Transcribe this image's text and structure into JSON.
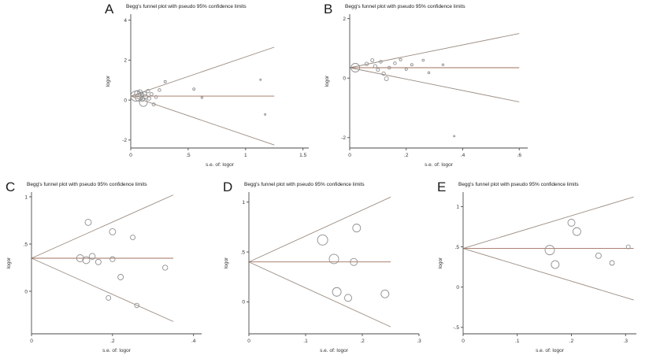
{
  "figure": {
    "background": "#ffffff",
    "axis_color": "#4a4a4a",
    "funnel_line_color": "#9a8c82",
    "center_line_color": "#a0715e",
    "point_color": "#8f8f8f",
    "text_color": "#1a1a1a"
  },
  "chart_data": [
    {
      "panel": "A",
      "type": "scatter",
      "title": "Begg's funnel plot with pseudo 95% confidence limits",
      "xlabel": "s.e. of: logor",
      "ylabel": "logor",
      "xlim": [
        0,
        1.55
      ],
      "ylim": [
        -2.4,
        4.3
      ],
      "xticks": [
        0,
        0.5,
        1,
        1.5
      ],
      "xtick_labels": [
        "0",
        ".5",
        "1",
        "1.5"
      ],
      "yticks": [
        -2,
        0,
        2,
        4
      ],
      "ytick_labels": [
        "-2",
        "0",
        "2",
        "4"
      ],
      "grid": false,
      "legend": null,
      "center_line_y": 0.2,
      "funnel": {
        "apex_x": 0,
        "end_x": 1.25,
        "upper_end_y": 2.65,
        "lower_end_y": -2.25
      },
      "points": [
        {
          "x": 0.045,
          "y": 0.2,
          "size": 6.5
        },
        {
          "x": 0.06,
          "y": 0.32,
          "size": 4
        },
        {
          "x": 0.07,
          "y": 0.12,
          "size": 4.5
        },
        {
          "x": 0.08,
          "y": 0.4,
          "size": 3
        },
        {
          "x": 0.09,
          "y": 0.25,
          "size": 3.5
        },
        {
          "x": 0.1,
          "y": 0.05,
          "size": 3
        },
        {
          "x": 0.11,
          "y": -0.12,
          "size": 5
        },
        {
          "x": 0.12,
          "y": 0.3,
          "size": 2.8
        },
        {
          "x": 0.13,
          "y": 0.18,
          "size": 2.5
        },
        {
          "x": 0.15,
          "y": 0.45,
          "size": 2.2
        },
        {
          "x": 0.16,
          "y": 0.08,
          "size": 2.2
        },
        {
          "x": 0.18,
          "y": 0.3,
          "size": 2
        },
        {
          "x": 0.2,
          "y": -0.22,
          "size": 2
        },
        {
          "x": 0.22,
          "y": 0.15,
          "size": 1.8
        },
        {
          "x": 0.25,
          "y": 0.5,
          "size": 1.8
        },
        {
          "x": 0.3,
          "y": 0.92,
          "size": 1.5
        },
        {
          "x": 0.55,
          "y": 0.55,
          "size": 1.5
        },
        {
          "x": 0.62,
          "y": 0.12,
          "size": 1.2
        },
        {
          "x": 1.13,
          "y": 1.02,
          "size": 1
        },
        {
          "x": 1.17,
          "y": -0.72,
          "size": 1
        }
      ]
    },
    {
      "panel": "B",
      "type": "scatter",
      "title": "Begg's funnel plot with pseudo 95% confidence limits",
      "xlabel": "s.e. of: logor",
      "ylabel": "logor",
      "xlim": [
        0,
        0.63
      ],
      "ylim": [
        -2.35,
        2.15
      ],
      "xticks": [
        0,
        0.2,
        0.4,
        0.6
      ],
      "xtick_labels": [
        "0",
        ".2",
        ".4",
        ".6"
      ],
      "yticks": [
        -2,
        0,
        2
      ],
      "ytick_labels": [
        "-2",
        "0",
        "2"
      ],
      "grid": false,
      "legend": null,
      "center_line_y": 0.35,
      "funnel": {
        "apex_x": 0,
        "end_x": 0.6,
        "upper_end_y": 1.5,
        "lower_end_y": -0.8
      },
      "points": [
        {
          "x": 0.02,
          "y": 0.35,
          "size": 5.5
        },
        {
          "x": 0.06,
          "y": 0.48,
          "size": 2.2
        },
        {
          "x": 0.08,
          "y": 0.6,
          "size": 2
        },
        {
          "x": 0.09,
          "y": 0.4,
          "size": 2.2
        },
        {
          "x": 0.1,
          "y": 0.28,
          "size": 2
        },
        {
          "x": 0.11,
          "y": 0.55,
          "size": 1.8
        },
        {
          "x": 0.12,
          "y": 0.15,
          "size": 2.2
        },
        {
          "x": 0.13,
          "y": -0.02,
          "size": 2.5
        },
        {
          "x": 0.14,
          "y": 0.35,
          "size": 1.8
        },
        {
          "x": 0.16,
          "y": 0.5,
          "size": 1.8
        },
        {
          "x": 0.18,
          "y": 0.62,
          "size": 1.6
        },
        {
          "x": 0.2,
          "y": 0.3,
          "size": 1.5
        },
        {
          "x": 0.22,
          "y": 0.45,
          "size": 1.5
        },
        {
          "x": 0.26,
          "y": 0.6,
          "size": 1.4
        },
        {
          "x": 0.28,
          "y": 0.18,
          "size": 1.3
        },
        {
          "x": 0.33,
          "y": 0.45,
          "size": 1.2
        },
        {
          "x": 0.37,
          "y": -1.95,
          "size": 1
        }
      ]
    },
    {
      "panel": "C",
      "type": "scatter",
      "title": "Begg's funnel plot with pseudo 95% confidence limits",
      "xlabel": "s.e. of: logor",
      "ylabel": "logor",
      "xlim": [
        0,
        0.42
      ],
      "ylim": [
        -0.45,
        1.05
      ],
      "xticks": [
        0,
        0.2,
        0.4
      ],
      "xtick_labels": [
        "0",
        ".2",
        ".4"
      ],
      "yticks": [
        0,
        0.5,
        1
      ],
      "ytick_labels": [
        "0",
        ".5",
        "1"
      ],
      "grid": false,
      "legend": null,
      "center_line_y": 0.35,
      "funnel": {
        "apex_x": 0,
        "end_x": 0.35,
        "upper_end_y": 1.02,
        "lower_end_y": -0.32
      },
      "points": [
        {
          "x": 0.14,
          "y": 0.73,
          "size": 4
        },
        {
          "x": 0.2,
          "y": 0.63,
          "size": 4
        },
        {
          "x": 0.25,
          "y": 0.57,
          "size": 3
        },
        {
          "x": 0.12,
          "y": 0.35,
          "size": 4.5
        },
        {
          "x": 0.135,
          "y": 0.33,
          "size": 4.5
        },
        {
          "x": 0.15,
          "y": 0.37,
          "size": 3.8
        },
        {
          "x": 0.165,
          "y": 0.31,
          "size": 3.5
        },
        {
          "x": 0.2,
          "y": 0.34,
          "size": 3.2
        },
        {
          "x": 0.22,
          "y": 0.15,
          "size": 3.5
        },
        {
          "x": 0.33,
          "y": 0.25,
          "size": 3.2
        },
        {
          "x": 0.19,
          "y": -0.07,
          "size": 3
        },
        {
          "x": 0.26,
          "y": -0.15,
          "size": 2.8
        }
      ]
    },
    {
      "panel": "D",
      "type": "scatter",
      "title": "Begg's funnel plot with pseudo 95% confidence limits",
      "xlabel": "s.e. of: logor",
      "ylabel": "logor",
      "xlim": [
        0,
        0.3
      ],
      "ylim": [
        -0.32,
        1.1
      ],
      "xticks": [
        0,
        0.1,
        0.2,
        0.3
      ],
      "xtick_labels": [
        "0",
        ".1",
        ".2",
        ".3"
      ],
      "yticks": [
        0,
        0.5,
        1
      ],
      "ytick_labels": [
        "0",
        ".5",
        "1"
      ],
      "grid": false,
      "legend": null,
      "center_line_y": 0.4,
      "funnel": {
        "apex_x": 0,
        "end_x": 0.25,
        "upper_end_y": 1.05,
        "lower_end_y": -0.25
      },
      "points": [
        {
          "x": 0.13,
          "y": 0.62,
          "size": 6.5
        },
        {
          "x": 0.19,
          "y": 0.74,
          "size": 5
        },
        {
          "x": 0.15,
          "y": 0.43,
          "size": 6
        },
        {
          "x": 0.185,
          "y": 0.4,
          "size": 4.5
        },
        {
          "x": 0.155,
          "y": 0.1,
          "size": 5.5
        },
        {
          "x": 0.175,
          "y": 0.04,
          "size": 4.5
        },
        {
          "x": 0.24,
          "y": 0.08,
          "size": 5
        }
      ]
    },
    {
      "panel": "E",
      "type": "scatter",
      "title": "Begg's funnel plot with pseudo 95% confidence limits",
      "xlabel": "s.e. of: logor",
      "ylabel": "logor",
      "xlim": [
        0,
        0.32
      ],
      "ylim": [
        -0.58,
        1.18
      ],
      "xticks": [
        0,
        0.1,
        0.2,
        0.3
      ],
      "xtick_labels": [
        "0",
        ".1",
        ".2",
        ".3"
      ],
      "yticks": [
        -0.5,
        0,
        0.5,
        1
      ],
      "ytick_labels": [
        "-.5",
        "0",
        ".5",
        "1"
      ],
      "grid": false,
      "legend": null,
      "center_line_y": 0.48,
      "funnel": {
        "apex_x": 0,
        "end_x": 0.315,
        "upper_end_y": 1.12,
        "lower_end_y": -0.16
      },
      "points": [
        {
          "x": 0.2,
          "y": 0.8,
          "size": 4.5
        },
        {
          "x": 0.21,
          "y": 0.69,
          "size": 5
        },
        {
          "x": 0.16,
          "y": 0.46,
          "size": 6
        },
        {
          "x": 0.17,
          "y": 0.28,
          "size": 5
        },
        {
          "x": 0.25,
          "y": 0.39,
          "size": 3.5
        },
        {
          "x": 0.275,
          "y": 0.3,
          "size": 3
        },
        {
          "x": 0.305,
          "y": 0.5,
          "size": 2.5
        }
      ]
    }
  ]
}
